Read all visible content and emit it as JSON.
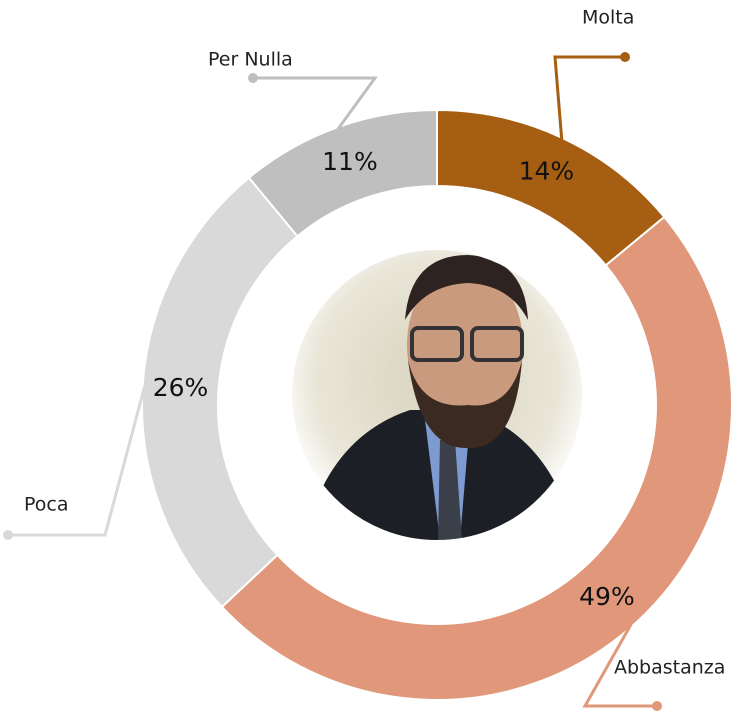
{
  "chart_data": {
    "type": "donut",
    "categories": [
      "Molta",
      "Abbastanza",
      "Poca",
      "Per Nulla"
    ],
    "values": [
      14,
      49,
      26,
      11
    ],
    "value_labels": [
      "14%",
      "49%",
      "26%",
      "11%"
    ],
    "colors": [
      "#a65f12",
      "#e0977a",
      "#d9d9d9",
      "#bfbfbf"
    ]
  }
}
